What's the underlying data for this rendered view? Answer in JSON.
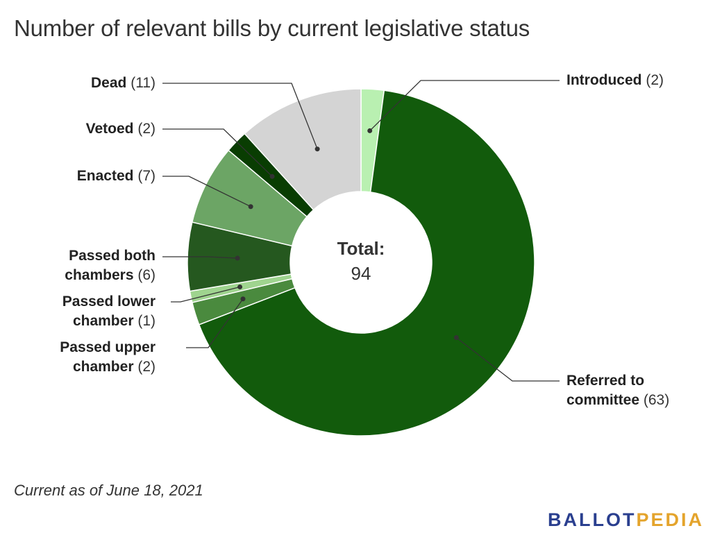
{
  "chart_data": {
    "type": "pie",
    "title": "Number of relevant bills by current legislative status",
    "donut": true,
    "center_label": "Total:",
    "center_value": "94",
    "slices": [
      {
        "label": "Introduced",
        "count_text": "(2)",
        "value": 2,
        "color": "#b9f0b1"
      },
      {
        "label": "Referred to committee",
        "label_lines": [
          "Referred to",
          "committee"
        ],
        "count_text": "(63)",
        "value": 63,
        "color": "#125b0c"
      },
      {
        "label": "Passed upper chamber",
        "label_lines": [
          "Passed upper",
          "chamber"
        ],
        "count_text": "(2)",
        "value": 2,
        "color": "#4a8a3e"
      },
      {
        "label": "Passed lower chamber",
        "label_lines": [
          "Passed lower",
          "chamber"
        ],
        "count_text": "(1)",
        "value": 1,
        "color": "#9fd48f"
      },
      {
        "label": "Passed both chambers",
        "label_lines": [
          "Passed both",
          "chambers"
        ],
        "count_text": "(6)",
        "value": 6,
        "color": "#25581f"
      },
      {
        "label": "Enacted",
        "count_text": "(7)",
        "value": 7,
        "color": "#6ca565"
      },
      {
        "label": "Vetoed",
        "count_text": "(2)",
        "value": 2,
        "color": "#093d02"
      },
      {
        "label": "Dead",
        "count_text": "(11)",
        "value": 11,
        "color": "#d4d4d4"
      }
    ]
  },
  "footnote": "Current as of June 18, 2021",
  "logo": {
    "part1": "BALLOT",
    "part2": "PEDIA",
    "color1": "#2a3f8f",
    "color2": "#e4a42c"
  }
}
